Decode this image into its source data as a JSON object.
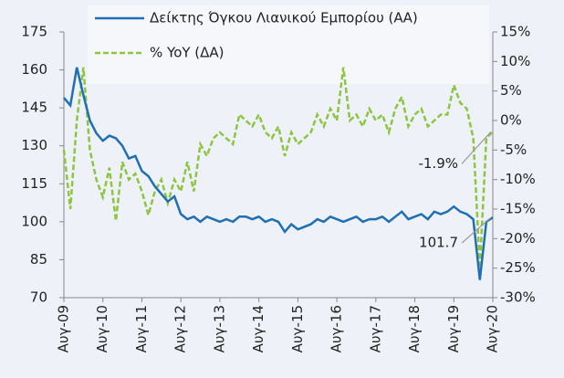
{
  "chart_data": {
    "type": "line",
    "categories": [
      "Αυγ-09",
      null,
      null,
      null,
      null,
      null,
      "Αυγ-10",
      null,
      null,
      null,
      null,
      null,
      "Αυγ-11",
      null,
      null,
      null,
      null,
      null,
      "Αυγ-12",
      null,
      null,
      null,
      null,
      null,
      "Αυγ-13",
      null,
      null,
      null,
      null,
      null,
      "Αυγ-14",
      null,
      null,
      null,
      null,
      null,
      "Αυγ-15",
      null,
      null,
      null,
      null,
      null,
      "Αυγ-16",
      null,
      null,
      null,
      null,
      null,
      "Αυγ-17",
      null,
      null,
      null,
      null,
      null,
      "Αυγ-18",
      null,
      null,
      null,
      null,
      null,
      "Αυγ-19",
      null,
      null,
      null,
      null,
      null,
      "Αυγ-20"
    ],
    "series": [
      {
        "name": "Δείκτης Όγκου Λιανικού Εμπορίου (ΑΑ)",
        "color": "#1f6fb4",
        "axis": "y",
        "dashed": false,
        "values": [
          149,
          146,
          161,
          150,
          140,
          135,
          132,
          134,
          133,
          130,
          125,
          126,
          120,
          118,
          114,
          111,
          108,
          110,
          103,
          101,
          102,
          100,
          102,
          101,
          100,
          101,
          100,
          102,
          102,
          101,
          102,
          100,
          101,
          100,
          96,
          99,
          97,
          98,
          99,
          101,
          100,
          102,
          101,
          100,
          101,
          102,
          100,
          101,
          101,
          102,
          100,
          102,
          104,
          101,
          102,
          103,
          101,
          104,
          103,
          104,
          106,
          104,
          103,
          101,
          77,
          100,
          101.7
        ]
      },
      {
        "name": "% YoY (ΔΑ)",
        "color": "#8cc63f",
        "axis": "y2",
        "dashed": true,
        "values": [
          -5,
          -15,
          0,
          9,
          -5,
          -10,
          -13,
          -8,
          -17,
          -7,
          -10,
          -9,
          -12,
          -16,
          -12,
          -10,
          -14,
          -10,
          -12,
          -7,
          -12,
          -4,
          -6,
          -3,
          -2,
          -3,
          -4,
          1,
          0,
          -1,
          1,
          -2,
          -3,
          -1,
          -6,
          -2,
          -4,
          -3,
          -2,
          1,
          -1,
          2,
          0,
          9,
          0,
          1,
          -1,
          2,
          0,
          1,
          -2,
          2,
          4,
          -1,
          1,
          2,
          -1,
          0,
          1,
          1,
          6,
          3,
          2,
          -3,
          -25,
          -3,
          -1.9
        ]
      }
    ],
    "ylim": [
      70,
      175
    ],
    "yticks": [
      70,
      85,
      100,
      115,
      130,
      145,
      160,
      175
    ],
    "y2lim": [
      -30,
      15
    ],
    "y2ticks": [
      {
        "value": -30,
        "label": "-30%"
      },
      {
        "value": -25,
        "label": "-25%"
      },
      {
        "value": -20,
        "label": "-20%"
      },
      {
        "value": -15,
        "label": "-15%"
      },
      {
        "value": -10,
        "label": "-10%"
      },
      {
        "value": -5,
        "label": "-5%"
      },
      {
        "value": 0,
        "label": "0%"
      },
      {
        "value": 5,
        "label": "5%"
      },
      {
        "value": 10,
        "label": "10%"
      },
      {
        "value": 15,
        "label": "15%"
      }
    ],
    "annotations": [
      {
        "text": "-1.9%",
        "series": 1
      },
      {
        "text": "101.7",
        "series": 0
      }
    ],
    "grid": false
  }
}
